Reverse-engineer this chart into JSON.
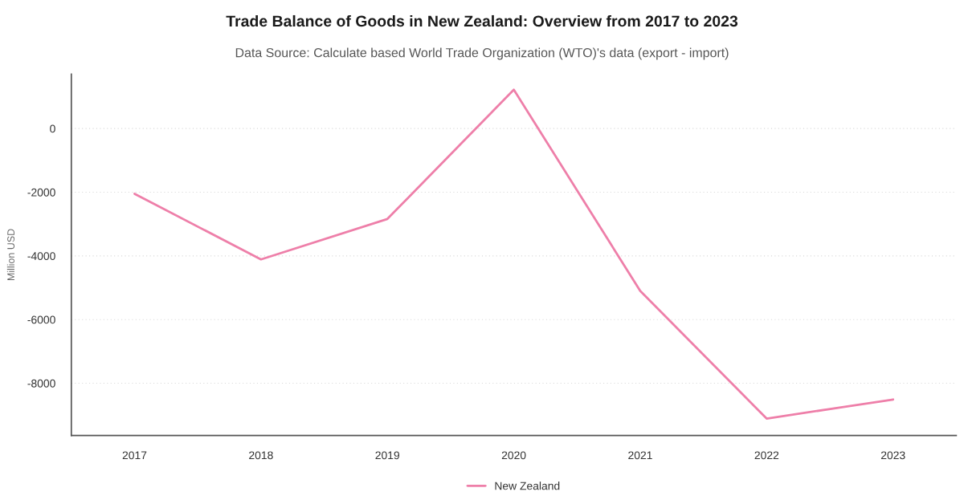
{
  "chart_data": {
    "type": "line",
    "title": "Trade Balance of Goods in New Zealand: Overview from 2017 to 2023",
    "subtitle": "Data Source: Calculate based World Trade Organization (WTO)'s data (export - import)",
    "ylabel": "Million USD",
    "categories": [
      "2017",
      "2018",
      "2019",
      "2020",
      "2021",
      "2022",
      "2023"
    ],
    "series": [
      {
        "name": "New Zealand",
        "color": "#ee7fa9",
        "values": [
          -2050,
          -4110,
          -2840,
          1220,
          -5100,
          -9110,
          -8510
        ]
      }
    ],
    "ylim": [
      -9640,
      1710
    ],
    "yticks": [
      -8000,
      -6000,
      -4000,
      -2000,
      0
    ],
    "grid": "y",
    "legend": "bottom",
    "marker": "none",
    "line_style": "solid"
  }
}
